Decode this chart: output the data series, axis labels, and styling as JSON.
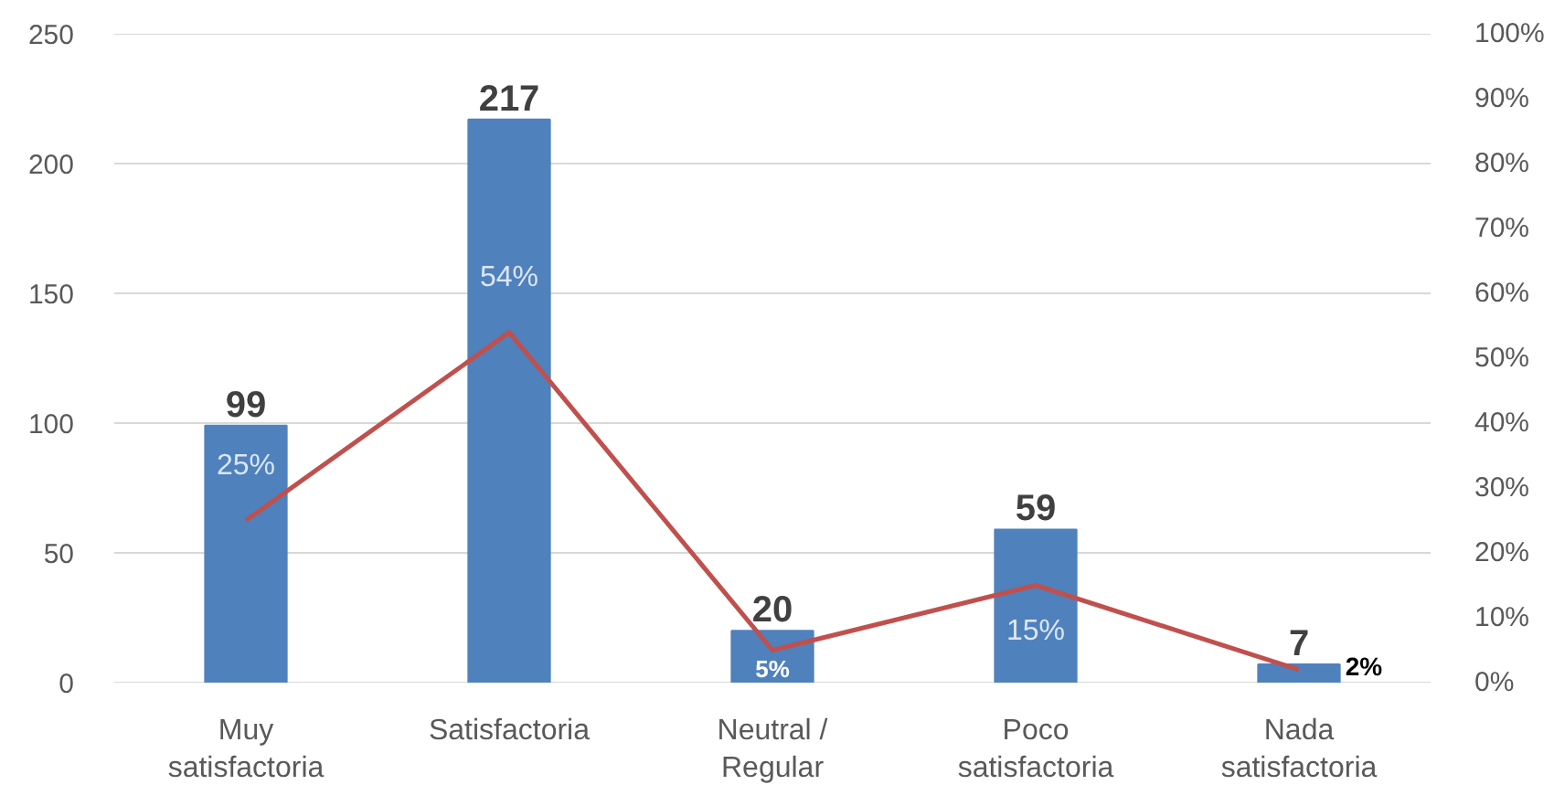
{
  "chart_data": {
    "type": "bar",
    "categories": [
      "Muy satisfactoria",
      "Satisfactoria",
      "Neutral / Regular",
      "Poco satisfactoria",
      "Nada satisfactoria"
    ],
    "series": [
      {
        "color": "#4f81bd",
        "values": [
          99,
          217,
          20,
          59,
          7
        ],
        "value_labels": [
          "99",
          "217",
          "20",
          "59",
          "7"
        ]
      },
      {
        "type": "line",
        "axis": "y2",
        "color": "#c0504d",
        "values": [
          25,
          54,
          5,
          15,
          2
        ],
        "value_labels": [
          "25%",
          "54%",
          "5%",
          "15%",
          "2%"
        ]
      }
    ],
    "ylim": [
      0,
      250
    ],
    "yticks": [
      0,
      50,
      100,
      150,
      200,
      250
    ],
    "y2lim": [
      0,
      100
    ],
    "y2ticks": [
      {
        "value": 0,
        "label": "0%"
      },
      {
        "value": 10,
        "label": "10%"
      },
      {
        "value": 20,
        "label": "20%"
      },
      {
        "value": 30,
        "label": "30%"
      },
      {
        "value": 40,
        "label": "40%"
      },
      {
        "value": 50,
        "label": "50%"
      },
      {
        "value": 60,
        "label": "60%"
      },
      {
        "value": 70,
        "label": "70%"
      },
      {
        "value": 80,
        "label": "80%"
      },
      {
        "value": 90,
        "label": "90%"
      },
      {
        "value": 100,
        "label": "100%"
      }
    ],
    "grid": "y"
  }
}
